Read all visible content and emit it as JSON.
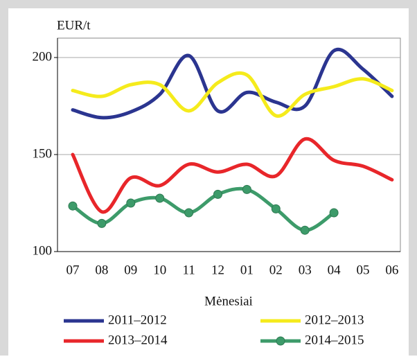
{
  "chart_data": {
    "type": "line",
    "y_label": "EUR/t",
    "x_label": "Mėnesiai",
    "categories": [
      "07",
      "08",
      "09",
      "10",
      "11",
      "12",
      "01",
      "02",
      "03",
      "04",
      "05",
      "06"
    ],
    "series": [
      {
        "name": "2011–2012",
        "color": "#2b3590",
        "values": [
          173,
          169,
          172,
          181,
          201,
          172.5,
          182,
          177,
          175,
          203.5,
          194,
          180
        ]
      },
      {
        "name": "2012–2013",
        "color": "#f5eb1c",
        "values": [
          183,
          180,
          186,
          186,
          172.5,
          187,
          191,
          170,
          181,
          185,
          189,
          183
        ]
      },
      {
        "name": "2013–2014",
        "color": "#e8262a",
        "values": [
          150,
          120.5,
          138,
          134,
          145,
          141,
          145,
          139,
          158,
          147,
          144,
          137
        ]
      },
      {
        "name": "2014–2015",
        "color": "#3d9b6a",
        "markers": true,
        "values": [
          123.5,
          114.5,
          125,
          127.5,
          120,
          129.5,
          132,
          122,
          111,
          120,
          null,
          null
        ]
      }
    ],
    "ylim": [
      100,
      210
    ],
    "yticks": [
      100,
      150,
      200
    ],
    "grid": true
  }
}
